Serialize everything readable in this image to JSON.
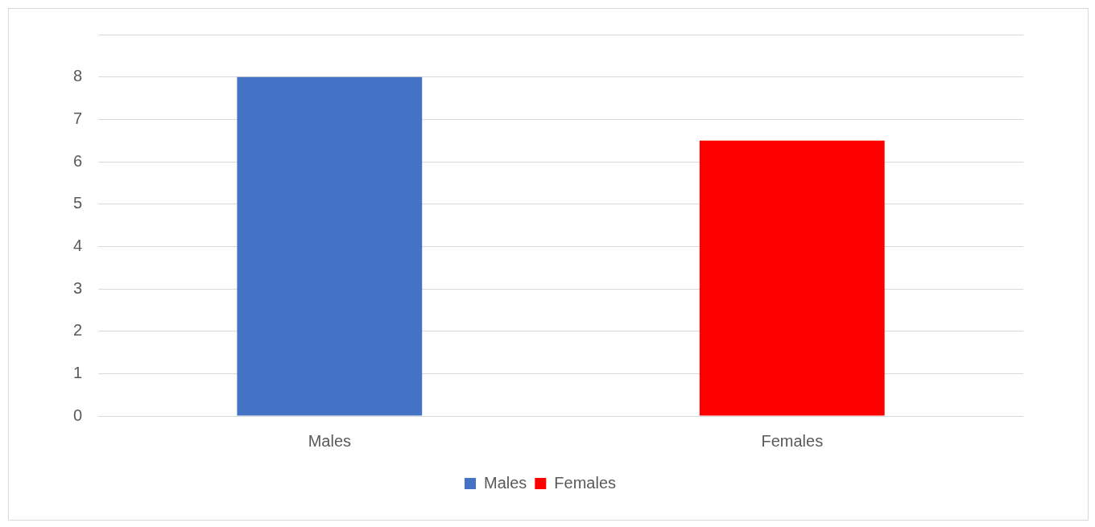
{
  "chart_data": {
    "type": "bar",
    "categories": [
      "Males",
      "Females"
    ],
    "series": [
      {
        "name": "Males",
        "color": "#4472c4",
        "values": [
          8,
          null
        ]
      },
      {
        "name": "Females",
        "color": "#ff0000",
        "values": [
          null,
          6.5
        ]
      }
    ],
    "ylim": [
      0,
      9
    ],
    "yticks": [
      0,
      1,
      2,
      3,
      4,
      5,
      6,
      7,
      8,
      {
        "value": 9,
        "label": null
      }
    ],
    "grid": "y",
    "legend": "bottom"
  }
}
